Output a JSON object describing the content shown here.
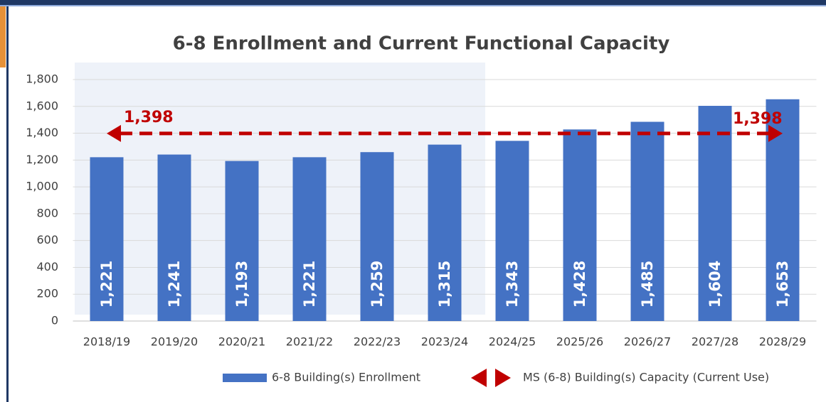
{
  "chart_data": {
    "type": "bar",
    "title": "6-8 Enrollment and Current Functional Capacity",
    "categories": [
      "2018/19",
      "2019/20",
      "2020/21",
      "2021/22",
      "2022/23",
      "2023/24",
      "2024/25",
      "2025/26",
      "2026/27",
      "2027/28",
      "2028/29"
    ],
    "series": [
      {
        "name": "6-8 Building(s) Enrollment",
        "color": "#4472c4",
        "values": [
          1221,
          1241,
          1193,
          1221,
          1259,
          1315,
          1343,
          1428,
          1485,
          1604,
          1653
        ],
        "value_labels": [
          "1,221",
          "1,241",
          "1,193",
          "1,221",
          "1,259",
          "1,315",
          "1,343",
          "1,428",
          "1,485",
          "1,604",
          "1,653"
        ]
      }
    ],
    "capacity": {
      "name": "MS (6-8) Building(s) Capacity (Current Use)",
      "color": "#c00000",
      "value": 1398,
      "label": "1,398"
    },
    "ylim": [
      0,
      1800
    ],
    "yticks": [
      0,
      200,
      400,
      600,
      800,
      {
        "value": 1000,
        "label": "1,000"
      },
      {
        "value": 1200,
        "label": "1,200"
      },
      {
        "value": 1400,
        "label": "1,400"
      },
      {
        "value": 1600,
        "label": "1,600"
      },
      {
        "value": 1800,
        "label": "1,800"
      }
    ],
    "grid": true
  }
}
